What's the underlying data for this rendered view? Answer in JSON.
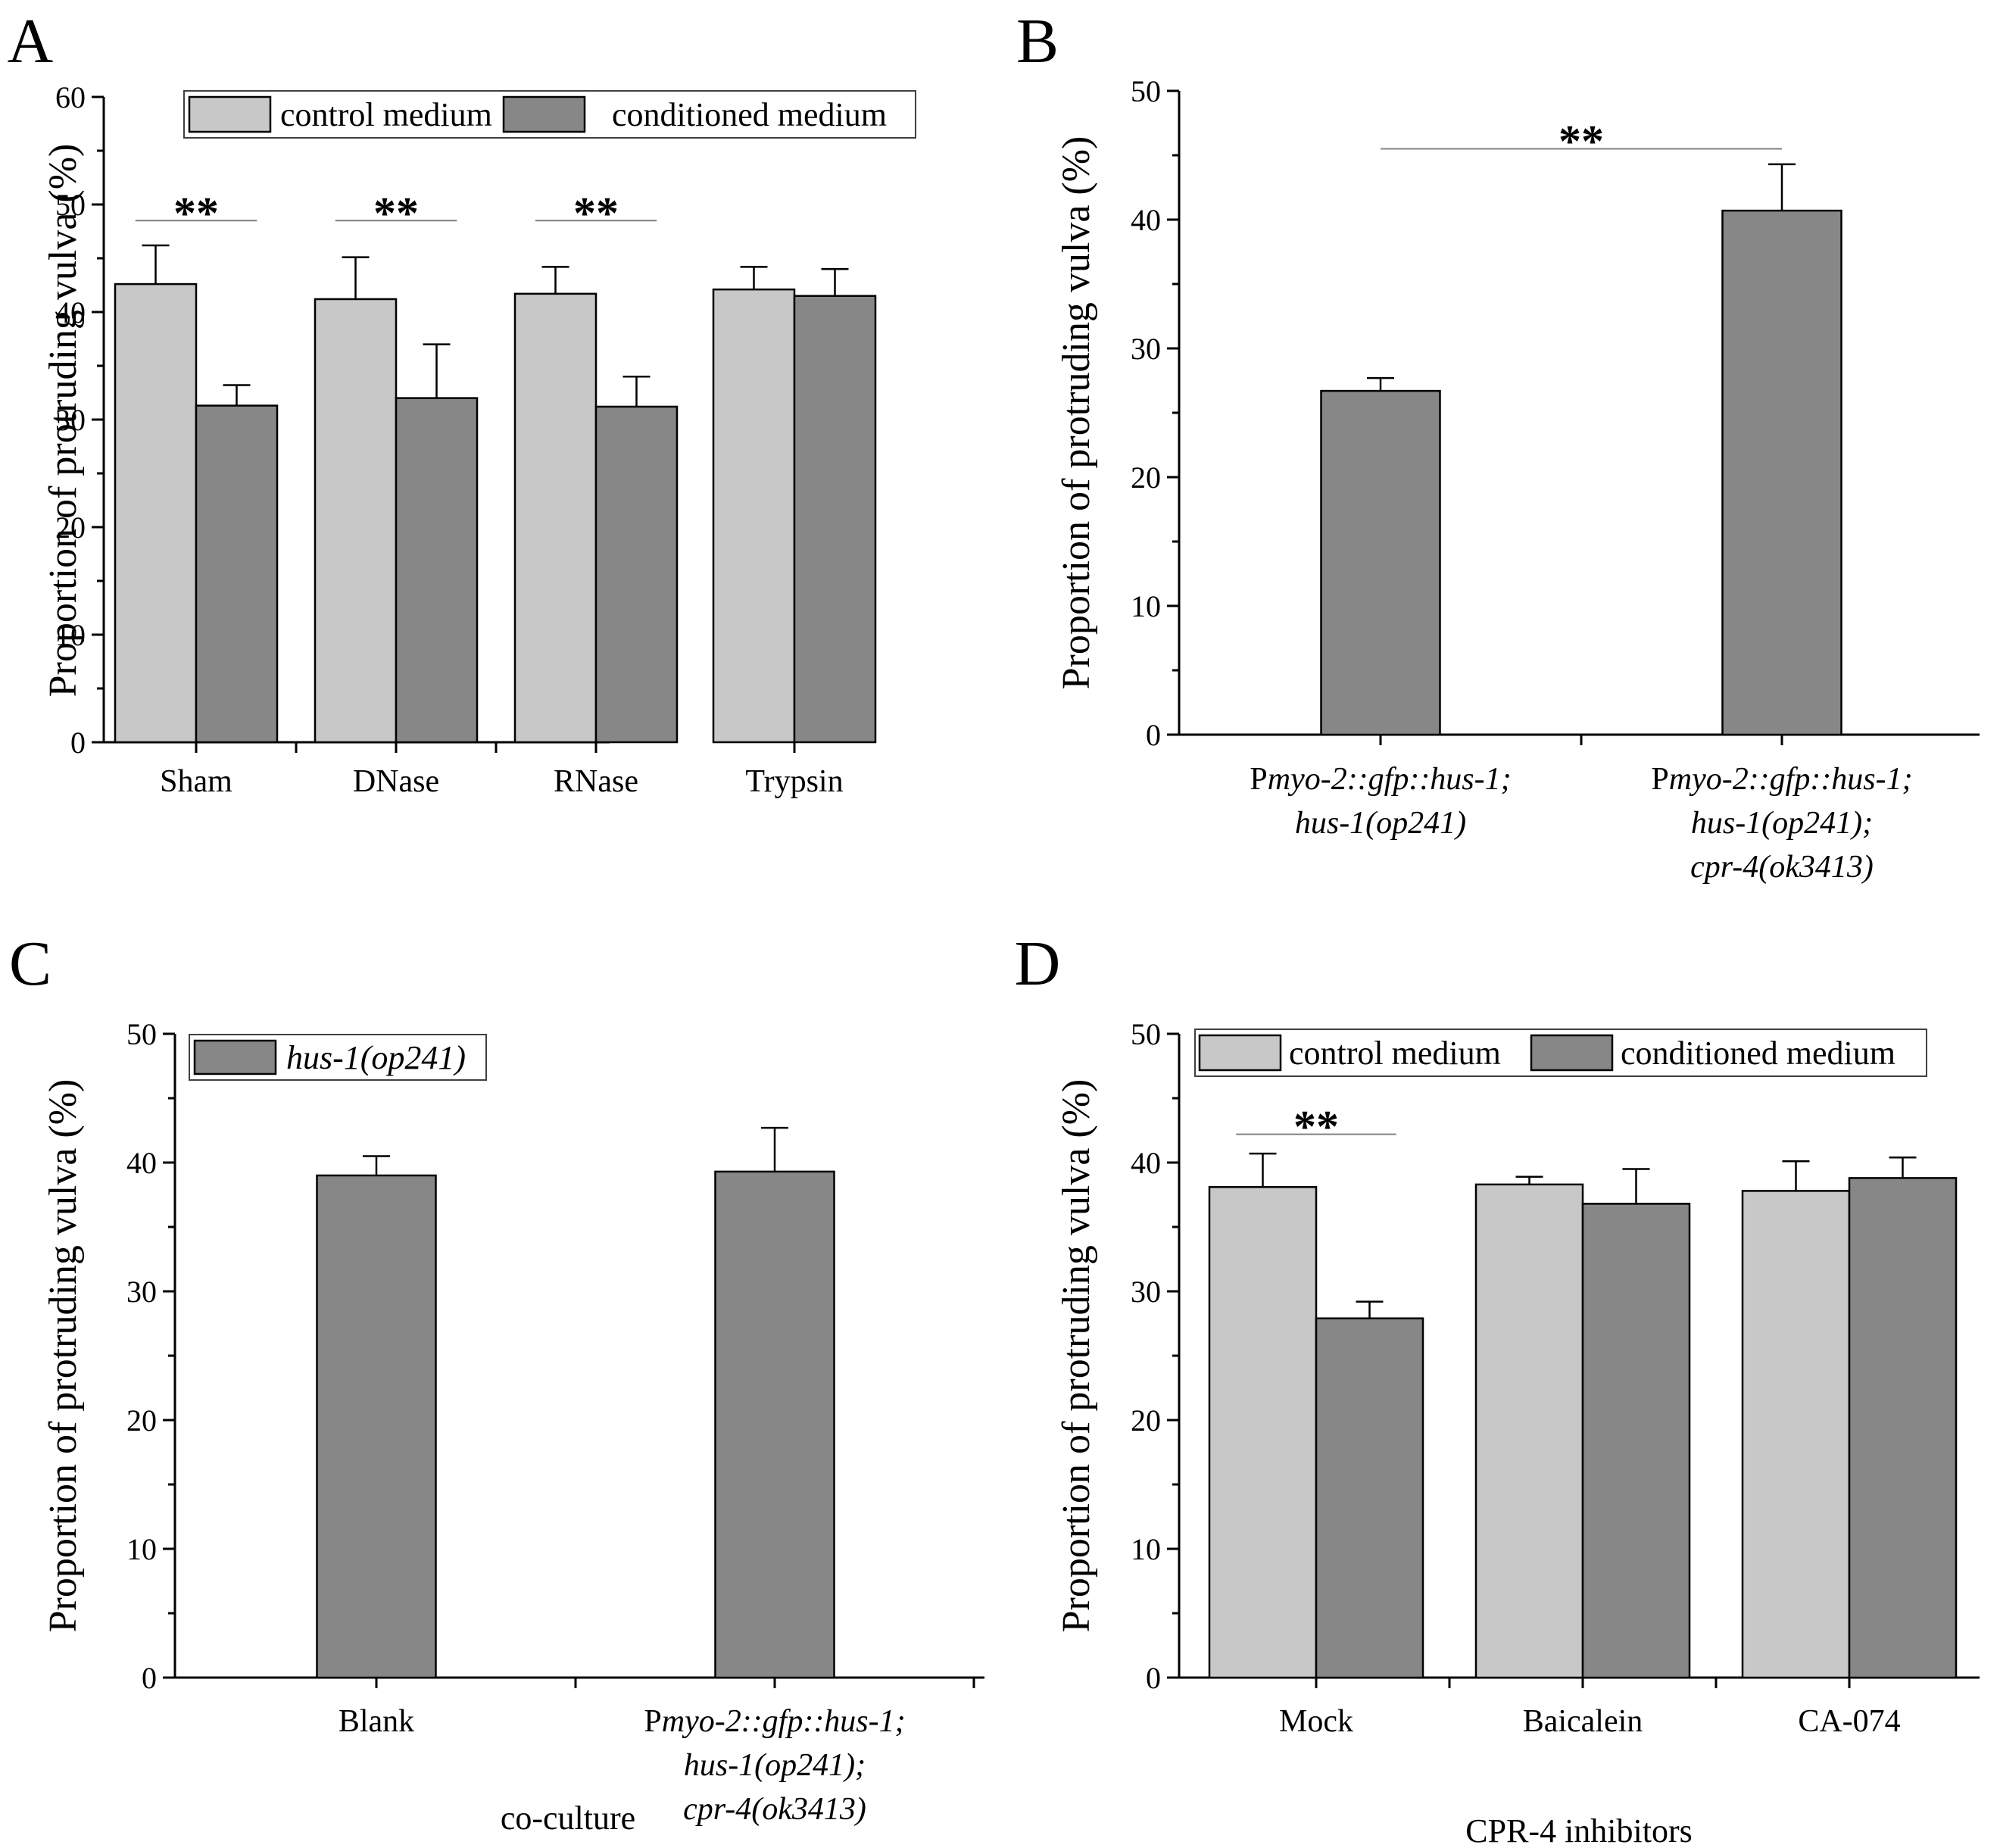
{
  "colors": {
    "control": "#c8c8c8",
    "conditioned": "#878787",
    "axis": "#000000",
    "sig_line": "#808080"
  },
  "panels": [
    {
      "id": "A",
      "letter": "A",
      "chart_data": {
        "type": "bar",
        "ylabel": "Proportion of protruding vulva (%)",
        "ylim": [
          0,
          60
        ],
        "yticks": [
          0,
          10,
          20,
          30,
          40,
          50,
          60
        ],
        "categories": [
          {
            "label": [
              "Sham"
            ]
          },
          {
            "label": [
              "DNase"
            ]
          },
          {
            "label": [
              "RNase"
            ]
          },
          {
            "label": [
              "Trypsin"
            ]
          }
        ],
        "series": [
          {
            "name": "control medium",
            "color": "control",
            "values": [
              42.6,
              41.2,
              41.7,
              42.1
            ],
            "errors": [
              3.6,
              3.9,
              2.5,
              2.1
            ]
          },
          {
            "name": "conditioned medium",
            "color": "conditioned",
            "values": [
              31.3,
              32.0,
              31.2,
              41.5
            ],
            "errors": [
              1.9,
              5.0,
              2.8,
              2.5
            ]
          }
        ],
        "legend": {
          "position": "top",
          "entries": [
            {
              "segments": [
                {
                  "t": "control medium",
                  "i": false
                }
              ],
              "color": "control"
            },
            {
              "segments": [
                {
                  "t": "conditioned medium",
                  "i": false
                }
              ],
              "color": "conditioned"
            }
          ]
        },
        "significance": [
          {
            "from": 0,
            "to": 0,
            "y": 48.5,
            "label": "**"
          },
          {
            "from": 1,
            "to": 1,
            "y": 48.5,
            "label": "**"
          },
          {
            "from": 2,
            "to": 2,
            "y": 48.5,
            "label": "**"
          }
        ]
      }
    },
    {
      "id": "B",
      "letter": "B",
      "chart_data": {
        "type": "bar",
        "ylabel": "Proportion of protruding vulva (%)",
        "ylim": [
          0,
          50
        ],
        "yticks": [
          0,
          10,
          20,
          30,
          40,
          50
        ],
        "categories": [
          {
            "label": [
              [
                {
                  "t": "P",
                  "i": false
                },
                {
                  "t": "myo-2::gfp::hus-1;",
                  "i": true
                }
              ],
              [
                {
                  "t": "hus-1(op241)",
                  "i": true
                }
              ]
            ]
          },
          {
            "label": [
              [
                {
                  "t": "P",
                  "i": false
                },
                {
                  "t": "myo-2::gfp::hus-1;",
                  "i": true
                }
              ],
              [
                {
                  "t": "hus-1(op241);",
                  "i": true
                }
              ],
              [
                {
                  "t": "cpr-4(ok3413)",
                  "i": true
                }
              ]
            ]
          }
        ],
        "series": [
          {
            "name": "",
            "color": "conditioned",
            "values": [
              26.7,
              40.7
            ],
            "errors": [
              1.0,
              3.6
            ]
          }
        ],
        "legend": null,
        "significance": [
          {
            "from": 0,
            "to": 1,
            "y": 45.5,
            "label": "**"
          }
        ]
      }
    },
    {
      "id": "C",
      "letter": "C",
      "chart_data": {
        "type": "bar",
        "ylabel": "Proportion of protruding vulva (%)",
        "xlabel": "co-culture",
        "ylim": [
          0,
          50
        ],
        "yticks": [
          0,
          10,
          20,
          30,
          40,
          50
        ],
        "categories": [
          {
            "label": [
              "Blank"
            ]
          },
          {
            "label": [
              [
                {
                  "t": "P",
                  "i": false
                },
                {
                  "t": "myo-2::gfp::hus-1;",
                  "i": true
                }
              ],
              [
                {
                  "t": "hus-1(op241);",
                  "i": true
                }
              ],
              [
                {
                  "t": "cpr-4(ok3413)",
                  "i": true
                }
              ]
            ]
          }
        ],
        "series": [
          {
            "name": "hus-1(op241)",
            "color": "conditioned",
            "values": [
              39.0,
              39.3
            ],
            "errors": [
              1.5,
              3.4
            ]
          }
        ],
        "legend": {
          "position": "top-left",
          "entries": [
            {
              "segments": [
                {
                  "t": "hus-1(op241)",
                  "i": true
                }
              ],
              "color": "conditioned"
            }
          ]
        },
        "significance": []
      }
    },
    {
      "id": "D",
      "letter": "D",
      "chart_data": {
        "type": "bar",
        "ylabel": "Proportion of protruding vulva (%)",
        "xlabel": "CPR-4 inhibitors",
        "ylim": [
          0,
          50
        ],
        "yticks": [
          0,
          10,
          20,
          30,
          40,
          50
        ],
        "categories": [
          {
            "label": [
              "Mock"
            ]
          },
          {
            "label": [
              "Baicalein"
            ]
          },
          {
            "label": [
              "CA-074"
            ]
          }
        ],
        "series": [
          {
            "name": "control medium",
            "color": "control",
            "values": [
              38.1,
              38.3,
              37.8
            ],
            "errors": [
              2.6,
              0.6,
              2.3
            ]
          },
          {
            "name": "conditioned medium",
            "color": "conditioned",
            "values": [
              27.9,
              36.8,
              38.8
            ],
            "errors": [
              1.3,
              2.7,
              1.6
            ]
          }
        ],
        "legend": {
          "position": "top",
          "entries": [
            {
              "segments": [
                {
                  "t": "control medium",
                  "i": false
                }
              ],
              "color": "control"
            },
            {
              "segments": [
                {
                  "t": "conditioned medium",
                  "i": false
                }
              ],
              "color": "conditioned"
            }
          ]
        },
        "significance": [
          {
            "from": 0,
            "to": 0,
            "y": 42.2,
            "label": "**"
          }
        ]
      }
    }
  ]
}
